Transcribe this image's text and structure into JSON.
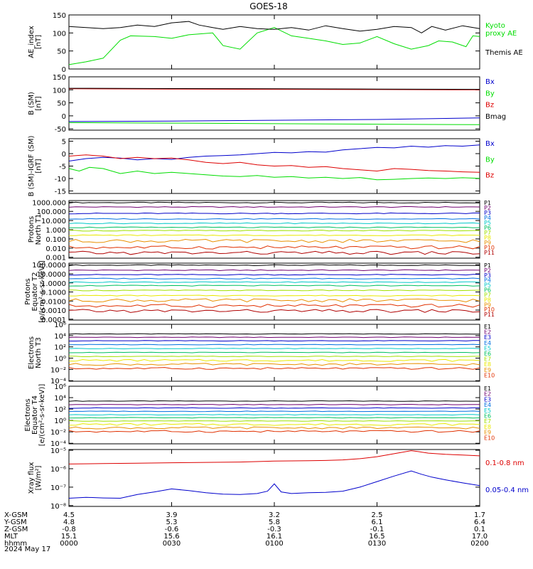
{
  "title": "GOES-18",
  "x_ticks": [
    "0000",
    "0030",
    "0100",
    "0130",
    "0200"
  ],
  "orbit_rows": [
    {
      "label": "X-GSM",
      "values": [
        "4.5",
        "3.9",
        "3.2",
        "2.5",
        "1.7"
      ]
    },
    {
      "label": "Y-GSM",
      "values": [
        "4.8",
        "5.3",
        "5.8",
        "6.1",
        "6.4"
      ]
    },
    {
      "label": "Z-GSM",
      "values": [
        "-0.8",
        "-0.6",
        "-0.3",
        "-0.1",
        "0.1"
      ]
    },
    {
      "label": "MLT",
      "values": [
        "15.1",
        "15.6",
        "16.1",
        "16.5",
        "17.0"
      ]
    },
    {
      "label": "hhmm",
      "values": [
        "0000",
        "0030",
        "0100",
        "0130",
        "0200"
      ]
    }
  ],
  "date_label": "2024 May 17",
  "colors": {
    "black": "#000000",
    "green": "#00dd00",
    "red": "#dd0000",
    "blue": "#0000cc",
    "channels": [
      "#000000",
      "#700070",
      "#0000c8",
      "#0070e0",
      "#00c8c8",
      "#00c060",
      "#a0e000",
      "#e8e800",
      "#e89000",
      "#e03000",
      "#b00000"
    ]
  },
  "chart_data": [
    {
      "type": "line",
      "ylabel": [
        "AE_index",
        "[nT]"
      ],
      "ylim": [
        0,
        150
      ],
      "yticks": [
        "0",
        "50",
        "100",
        "150"
      ],
      "ytick_values": [
        0,
        50,
        100,
        150
      ],
      "xlim": [
        0,
        120
      ],
      "series": [
        {
          "name": "Kyoto proxy AE",
          "label_lines": [
            "Kyoto",
            "proxy AE"
          ],
          "color": "#00dd00",
          "x": [
            0,
            5,
            10,
            15,
            18,
            25,
            30,
            35,
            42,
            45,
            50,
            55,
            60,
            65,
            70,
            75,
            80,
            85,
            90,
            95,
            100,
            105,
            108,
            112,
            116,
            118,
            120
          ],
          "y": [
            12,
            20,
            30,
            80,
            92,
            90,
            85,
            95,
            100,
            65,
            55,
            100,
            115,
            92,
            85,
            78,
            68,
            72,
            90,
            70,
            55,
            65,
            78,
            75,
            62,
            92,
            90
          ]
        },
        {
          "name": "Themis AE",
          "label_lines": [
            "Themis AE"
          ],
          "color": "#000000",
          "x": [
            0,
            5,
            10,
            15,
            20,
            25,
            30,
            35,
            38,
            42,
            45,
            50,
            55,
            60,
            65,
            70,
            75,
            80,
            85,
            90,
            95,
            100,
            103,
            106,
            110,
            115,
            120
          ],
          "y": [
            118,
            115,
            112,
            115,
            122,
            118,
            128,
            132,
            122,
            115,
            110,
            118,
            112,
            110,
            115,
            108,
            120,
            112,
            105,
            110,
            118,
            115,
            100,
            118,
            108,
            120,
            112
          ]
        }
      ]
    },
    {
      "type": "line",
      "ylabel": [
        "B (SM)",
        "[nT]"
      ],
      "ylim": [
        -55,
        150
      ],
      "yticks": [
        "-50",
        "0",
        "50",
        "100",
        "150"
      ],
      "ytick_values": [
        -50,
        0,
        50,
        100,
        150
      ],
      "xlim": [
        0,
        120
      ],
      "series": [
        {
          "name": "Bx",
          "color": "#0000cc",
          "x": [
            0,
            30,
            60,
            90,
            120
          ],
          "y": [
            -22,
            -20,
            -17,
            -14,
            -8
          ]
        },
        {
          "name": "By",
          "color": "#00dd00",
          "x": [
            0,
            30,
            60,
            90,
            120
          ],
          "y": [
            -26,
            -28,
            -30,
            -32,
            -34
          ]
        },
        {
          "name": "Bz",
          "color": "#dd0000",
          "x": [
            0,
            30,
            60,
            90,
            120
          ],
          "y": [
            104,
            103,
            102,
            101,
            100
          ]
        },
        {
          "name": "Bmag",
          "color": "#000000",
          "x": [
            0,
            30,
            60,
            90,
            120
          ],
          "y": [
            106,
            105,
            104,
            103,
            102
          ]
        }
      ]
    },
    {
      "type": "line",
      "ylabel": [
        "B (SM)-IGRF (SM)",
        "[nT]"
      ],
      "ylim": [
        -16,
        6
      ],
      "yticks": [
        "-15",
        "-10",
        "-5",
        "0",
        "5"
      ],
      "ytick_values": [
        -15,
        -10,
        -5,
        0,
        5
      ],
      "xlim": [
        0,
        120
      ],
      "series": [
        {
          "name": "Bx",
          "color": "#0000cc",
          "x": [
            0,
            5,
            10,
            15,
            20,
            25,
            30,
            35,
            40,
            45,
            50,
            55,
            60,
            65,
            70,
            75,
            80,
            85,
            90,
            95,
            100,
            105,
            110,
            115,
            120
          ],
          "y": [
            -3,
            -2,
            -1.5,
            -1.8,
            -2.5,
            -2,
            -2.3,
            -1.5,
            -1,
            -0.8,
            -0.5,
            0,
            0.5,
            0.3,
            0.8,
            0.6,
            1.5,
            2,
            2.5,
            2.3,
            3,
            2.6,
            3.2,
            3,
            3.5
          ]
        },
        {
          "name": "By",
          "color": "#00dd00",
          "x": [
            0,
            3,
            6,
            10,
            15,
            20,
            25,
            30,
            35,
            40,
            45,
            50,
            55,
            60,
            65,
            70,
            75,
            80,
            85,
            90,
            95,
            100,
            105,
            110,
            115,
            120
          ],
          "y": [
            -6,
            -7,
            -5.5,
            -6,
            -8,
            -7,
            -8,
            -7.5,
            -8,
            -8.5,
            -9,
            -9.2,
            -8.8,
            -9.5,
            -9.2,
            -9.8,
            -9.5,
            -10,
            -9.6,
            -10.5,
            -10.3,
            -10,
            -9.8,
            -10,
            -9.7,
            -9.9
          ]
        },
        {
          "name": "Bz",
          "color": "#dd0000",
          "x": [
            0,
            5,
            10,
            15,
            20,
            25,
            30,
            35,
            40,
            45,
            50,
            55,
            60,
            65,
            70,
            75,
            80,
            85,
            90,
            95,
            100,
            105,
            110,
            115,
            120
          ],
          "y": [
            -1,
            -0.5,
            -1,
            -2,
            -1.5,
            -2,
            -1.8,
            -2.5,
            -3.5,
            -4,
            -3.5,
            -4.5,
            -5,
            -4.8,
            -5.5,
            -5.2,
            -6,
            -6.5,
            -7,
            -6,
            -6.3,
            -6.8,
            -7,
            -7.3,
            -7.5
          ]
        }
      ]
    },
    {
      "type": "line",
      "scale": "log",
      "ylabel": [
        "Protons",
        "North T1"
      ],
      "ylim": [
        0.0008,
        1500
      ],
      "yticks": [
        "1000.000",
        "100.000",
        "10.000",
        "1.000",
        "0.100",
        "0.010",
        "0.001"
      ],
      "ytick_values": [
        1000,
        100,
        10,
        1,
        0.1,
        0.01,
        0.001
      ],
      "xlim": [
        0,
        120
      ],
      "channel_labels": [
        "P1",
        "P2",
        "P3",
        "P4",
        "P5",
        "P6",
        "P7",
        "P8",
        "P9",
        "P10",
        "P11"
      ],
      "levels": [
        900,
        300,
        60,
        15,
        5,
        1.8,
        0.8,
        0.25,
        0.06,
        0.012,
        0.003
      ]
    },
    {
      "type": "line",
      "scale": "log",
      "ylabel": [
        "Protons",
        "Equator T2",
        "[p/(cm²-s-sr-keV)]"
      ],
      "ylim": [
        8e-05,
        150
      ],
      "yticks": [
        "100.0000",
        "10.0000",
        "1.0000",
        "0.1000",
        "0.0100",
        "0.0010",
        "0.0001"
      ],
      "ytick_values": [
        100,
        10,
        1,
        0.1,
        0.01,
        0.001,
        0.0001
      ],
      "xlim": [
        0,
        120
      ],
      "channel_labels": [
        "P1",
        "P2",
        "P3",
        "P4",
        "P5",
        "P6",
        "P7",
        "P8",
        "P9",
        "P10",
        "P11"
      ],
      "levels": [
        90,
        25,
        8,
        3,
        1.2,
        0.5,
        0.15,
        0.04,
        0.012,
        0.003,
        0.0008
      ]
    },
    {
      "type": "line",
      "scale": "log",
      "ylabel": [
        "Electrons",
        "North T3"
      ],
      "ylim": [
        8e-05,
        1000000
      ],
      "yticks": [
        "10⁶",
        "10⁴",
        "10²",
        "10⁰",
        "10⁻²",
        "10⁻⁴"
      ],
      "ytick_values": [
        1000000,
        10000,
        100,
        1,
        0.01,
        0.0001
      ],
      "xlim": [
        0,
        120
      ],
      "channel_labels": [
        "E1",
        "E2",
        "E3",
        "E4",
        "E5",
        "E6",
        "E7",
        "E8",
        "E9",
        "E10"
      ],
      "levels": [
        20000,
        5000,
        1200,
        250,
        50,
        10,
        2,
        0.4,
        0.08,
        0.015
      ]
    },
    {
      "type": "line",
      "scale": "log",
      "ylabel": [
        "Electrons",
        "Equator T4",
        "[e/(cm²-s-sr-keV)]"
      ],
      "ylim": [
        8e-05,
        1000000
      ],
      "yticks": [
        "10⁶",
        "10⁴",
        "10²",
        "10⁰",
        "10⁻²",
        "10⁻⁴"
      ],
      "ytick_values": [
        1000000,
        10000,
        100,
        1,
        0.01,
        0.0001
      ],
      "xlim": [
        0,
        120
      ],
      "channel_labels": [
        "E1",
        "E2",
        "E3",
        "E4",
        "E5",
        "E6",
        "E7",
        "E8",
        "E9",
        "E10"
      ],
      "levels": [
        2500,
        600,
        150,
        40,
        10,
        3,
        0.8,
        0.2,
        0.05,
        0.012
      ]
    },
    {
      "type": "line",
      "scale": "log",
      "ylabel": [
        "Xray flux",
        "[W/m²]"
      ],
      "ylim": [
        9e-09,
        1.1e-05
      ],
      "yticks": [
        "10⁻⁵",
        "10⁻⁶",
        "10⁻⁷",
        "10⁻⁸"
      ],
      "ytick_values": [
        1e-05,
        1e-06,
        1e-07,
        1e-08
      ],
      "xlim": [
        0,
        120
      ],
      "series": [
        {
          "name": "0.1-0.8 nm",
          "color": "#dd0000",
          "x": [
            0,
            10,
            20,
            30,
            40,
            50,
            60,
            70,
            75,
            80,
            85,
            90,
            95,
            100,
            102,
            105,
            110,
            115,
            120
          ],
          "y": [
            1.8e-06,
            1.9e-06,
            2e-06,
            2.1e-06,
            2.2e-06,
            2.3e-06,
            2.6e-06,
            2.7e-06,
            2.8e-06,
            3e-06,
            3.5e-06,
            4.5e-06,
            6.5e-06,
            9.5e-06,
            8.5e-06,
            7e-06,
            6e-06,
            5.5e-06,
            5e-06
          ]
        },
        {
          "name": "0.05-0.4 nm",
          "color": "#0000cc",
          "x": [
            0,
            5,
            10,
            15,
            20,
            25,
            30,
            35,
            40,
            45,
            50,
            55,
            58,
            60,
            62,
            65,
            70,
            75,
            80,
            85,
            90,
            95,
            100,
            103,
            106,
            110,
            115,
            120
          ],
          "y": [
            2.5e-08,
            2.8e-08,
            2.6e-08,
            2.5e-08,
            4e-08,
            5.5e-08,
            8e-08,
            6.5e-08,
            5e-08,
            4.2e-08,
            4e-08,
            4.5e-08,
            6e-08,
            1.5e-07,
            5.5e-08,
            4.5e-08,
            5e-08,
            5.2e-08,
            6e-08,
            1e-07,
            2e-07,
            4e-07,
            7.5e-07,
            5e-07,
            3.5e-07,
            2.5e-07,
            1.7e-07,
            1.2e-07
          ]
        }
      ]
    }
  ]
}
